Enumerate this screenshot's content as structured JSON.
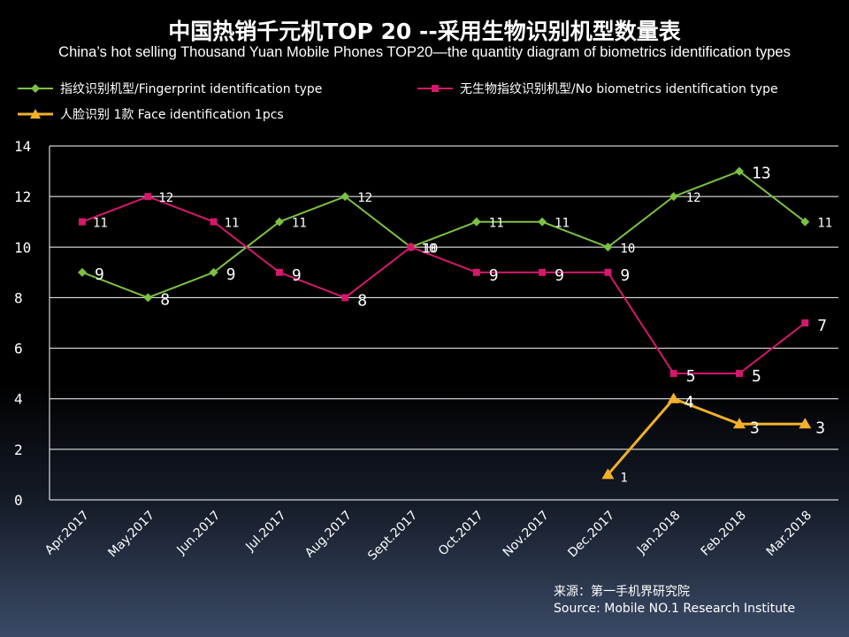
{
  "title_cn": "中国热销千元机TOP 20 --采用生物识别机型数量表",
  "title_en": "China’s hot selling Thousand Yuan Mobile Phones TOP20—the quantity diagram of biometrics identification types",
  "source": {
    "cn": "来源：第一手机界研究院",
    "en": "Source: Mobile NO.1 Research Institute"
  },
  "colors": {
    "fingerprint": "#7cc242",
    "no_biometrics": "#d4186c",
    "face": "#f2b129",
    "grid": "#ffffff"
  },
  "chart_data": {
    "type": "line",
    "categories": [
      "Apr.2017",
      "May.2017",
      "Jun.2017",
      "Jul.2017",
      "Aug.2017",
      "Sept.2017",
      "Oct.2017",
      "Nov.2017",
      "Dec.2017",
      "Jan.2018",
      "Feb.2018",
      "Mar.2018"
    ],
    "ylim": [
      0,
      14
    ],
    "yticks": [
      0,
      2,
      4,
      6,
      8,
      10,
      12,
      14
    ],
    "grid": true,
    "legend_position": "top",
    "series": [
      {
        "key": "fingerprint",
        "name": "指纹识别机型/Fingerprint identification type",
        "marker": "diamond",
        "values": [
          9,
          8,
          9,
          11,
          12,
          10,
          11,
          11,
          10,
          12,
          13,
          11
        ]
      },
      {
        "key": "no_biometrics",
        "name": "无生物指纹识别机型/No biometrics identification type",
        "marker": "square",
        "values": [
          11,
          12,
          11,
          9,
          8,
          10,
          9,
          9,
          9,
          5,
          5,
          7
        ]
      },
      {
        "key": "face",
        "name": "人脸识别 1款 Face identification 1pcs",
        "marker": "triangle",
        "values": [
          null,
          null,
          null,
          null,
          null,
          null,
          null,
          null,
          1,
          4,
          3,
          3
        ]
      }
    ]
  }
}
